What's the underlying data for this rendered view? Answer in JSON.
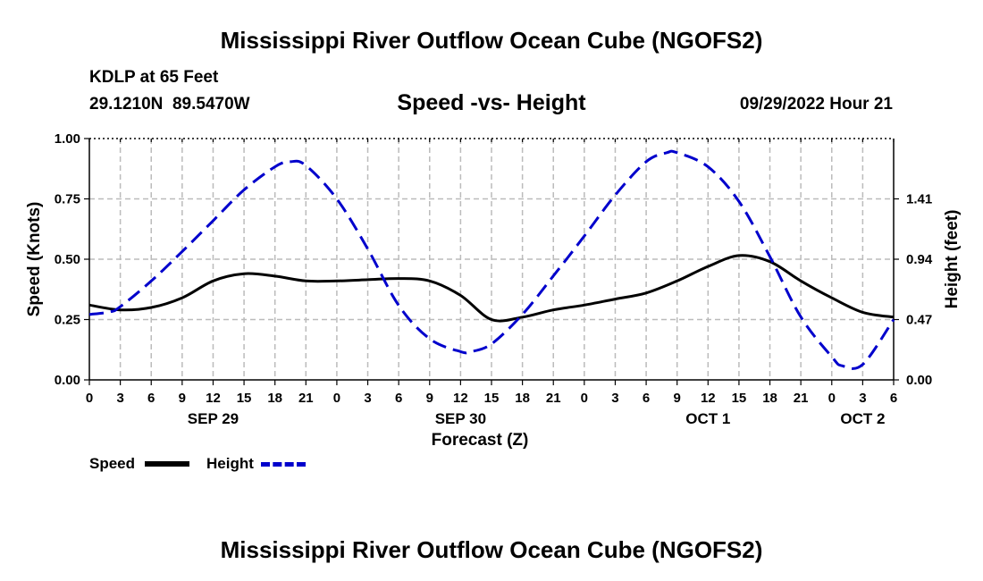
{
  "chart_data": {
    "type": "line",
    "title": "Mississippi River Outflow Ocean Cube (NGOFS2)",
    "subtitle": "Speed -vs- Height",
    "station": "KDLP at 65 Feet",
    "coordinates": "29.1210N  89.5470W",
    "timestamp": "09/29/2022 Hour 21",
    "xlabel": "Forecast (Z)",
    "ylabel": "Speed (Knots)",
    "y2label": "Height (feet)",
    "xlim": [
      0,
      78
    ],
    "ylim": [
      0,
      1.0
    ],
    "y2lim": [
      0,
      1.88
    ],
    "x_ticks": [
      0,
      3,
      6,
      9,
      12,
      15,
      18,
      21,
      24,
      27,
      30,
      33,
      36,
      39,
      42,
      45,
      48,
      51,
      54,
      57,
      60,
      63,
      66,
      69,
      72,
      75,
      78
    ],
    "x_tick_labels": [
      "0",
      "3",
      "6",
      "9",
      "12",
      "15",
      "18",
      "21",
      "0",
      "3",
      "6",
      "9",
      "12",
      "15",
      "18",
      "21",
      "0",
      "3",
      "6",
      "9",
      "12",
      "15",
      "18",
      "21",
      "0",
      "3",
      "6"
    ],
    "date_labels": [
      {
        "x": 12,
        "label": "SEP 29"
      },
      {
        "x": 36,
        "label": "SEP 30"
      },
      {
        "x": 60,
        "label": "OCT 1"
      },
      {
        "x": 75,
        "label": "OCT 2"
      }
    ],
    "y_ticks": [
      0,
      0.25,
      0.5,
      0.75,
      1.0
    ],
    "y_tick_labels": [
      "0.00",
      "0.25",
      "0.50",
      "0.75",
      "1.00"
    ],
    "y2_ticks": [
      0,
      0.47,
      0.94,
      1.41
    ],
    "y2_tick_labels": [
      "0.00",
      "0.47",
      "0.94",
      "1.41"
    ],
    "series": [
      {
        "name": "Speed",
        "axis": "left",
        "color": "#000000",
        "style": "solid",
        "x": [
          0,
          3,
          6,
          9,
          12,
          15,
          18,
          21,
          24,
          27,
          30,
          33,
          36,
          39,
          42,
          45,
          48,
          51,
          54,
          57,
          60,
          63,
          66,
          69,
          72,
          75,
          78
        ],
        "values": [
          0.31,
          0.29,
          0.3,
          0.34,
          0.41,
          0.44,
          0.43,
          0.41,
          0.41,
          0.415,
          0.42,
          0.41,
          0.35,
          0.25,
          0.26,
          0.29,
          0.31,
          0.335,
          0.36,
          0.41,
          0.47,
          0.515,
          0.49,
          0.41,
          0.34,
          0.28,
          0.26
        ]
      },
      {
        "name": "Height",
        "axis": "right",
        "color": "#0000cc",
        "style": "dashed",
        "x": [
          0,
          2,
          3,
          6,
          9,
          12,
          15,
          18,
          19.5,
          21,
          24,
          27,
          30,
          33,
          36,
          37,
          39,
          42,
          45,
          48,
          51,
          54,
          56,
          57,
          60,
          63,
          66,
          69,
          72,
          73,
          75,
          78
        ],
        "values": [
          0.51,
          0.53,
          0.57,
          0.77,
          1.0,
          1.24,
          1.48,
          1.66,
          1.7,
          1.67,
          1.41,
          1.02,
          0.58,
          0.32,
          0.22,
          0.22,
          0.28,
          0.51,
          0.81,
          1.12,
          1.44,
          1.7,
          1.77,
          1.77,
          1.66,
          1.39,
          0.96,
          0.49,
          0.18,
          0.11,
          0.12,
          0.47
        ]
      }
    ],
    "legend": [
      {
        "label": "Speed",
        "color": "#000000",
        "style": "solid"
      },
      {
        "label": "Height",
        "color": "#0000cc",
        "style": "dashed"
      }
    ],
    "legend_position": "bottom-left",
    "grid": true
  },
  "footer_title": "Mississippi River Outflow Ocean Cube (NGOFS2)"
}
